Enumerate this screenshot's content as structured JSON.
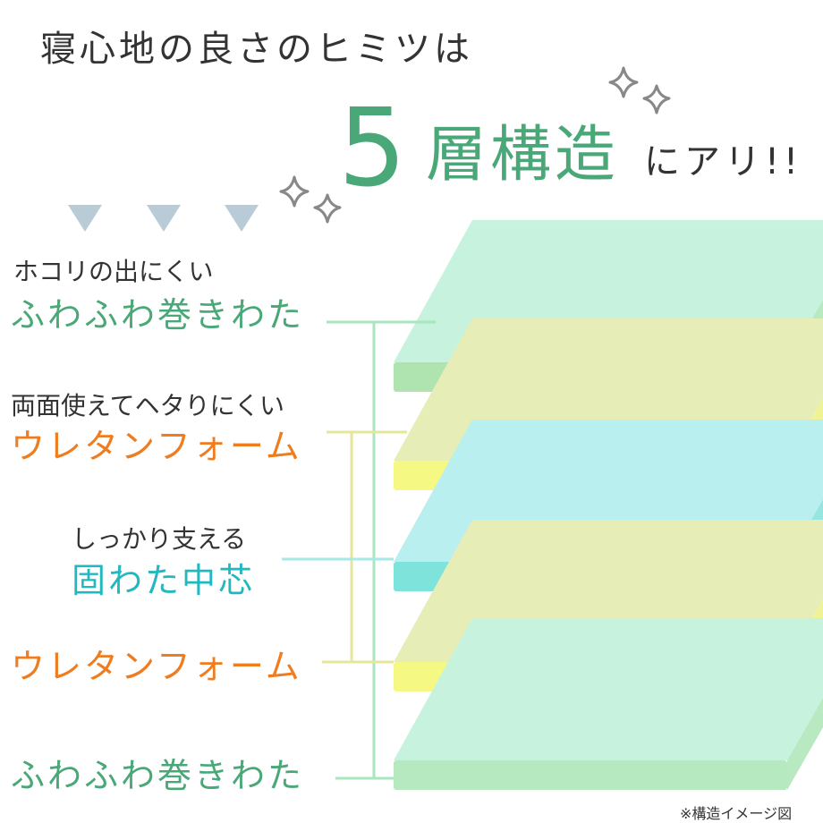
{
  "header": {
    "line1": "寝心地の良さのヒミツは",
    "number": "5",
    "emphasis": "層構造",
    "suffix": "にアリ!!"
  },
  "layers": [
    {
      "caption": "ホコリの出にくい",
      "name": "ふわふわ巻きわた"
    },
    {
      "caption": "両面使えてヘタりにくい",
      "name": "ウレタンフォーム"
    },
    {
      "caption": "しっかり支える",
      "name": "固わた中芯"
    },
    {
      "name": "ウレタンフォーム"
    },
    {
      "name": "ふわふわ巻きわた"
    }
  ],
  "note": "※構造イメージ図"
}
